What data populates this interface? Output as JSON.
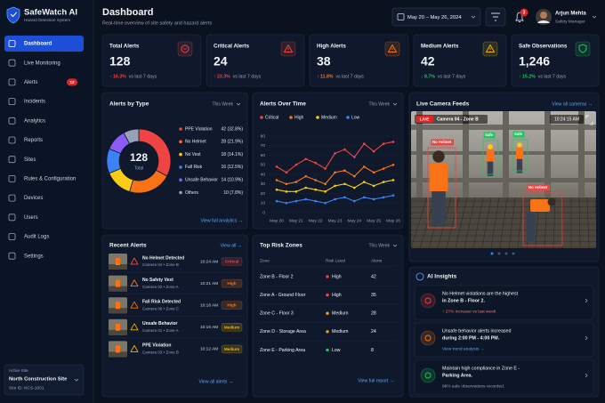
{
  "sidebar": {
    "app_name": "SafeWatch AI",
    "tagline": "Hazard Detection System",
    "nav": [
      {
        "label": "Dashboard",
        "active": true
      },
      {
        "label": "Live Monitoring"
      },
      {
        "label": "Alerts",
        "badge": 12
      },
      {
        "label": "Incidents"
      },
      {
        "label": "Analytics"
      },
      {
        "label": "Reports"
      },
      {
        "label": "Sites"
      },
      {
        "label": "Rules & Configuration"
      },
      {
        "label": "Devices"
      },
      {
        "label": "Users"
      },
      {
        "label": "Audit Logs"
      },
      {
        "label": "Settings"
      }
    ],
    "site": {
      "caption": "Active Site",
      "name": "North Construction Site",
      "id": "Site ID: NCS-1001"
    }
  },
  "header": {
    "title": "Dashboard",
    "subtitle": "Real-time overview of site safety and hazard alerts",
    "date_range": "May 20 – May 26, 2024",
    "notifications": 3,
    "user": {
      "name": "Arjun Mehta",
      "role": "Safety Manager"
    }
  },
  "kpis": [
    {
      "title": "Total Alerts",
      "value": 128,
      "change": "↑ 16.3%",
      "caption": "vs last 7 days",
      "color": "#ef4444",
      "trend_color": "#ef4444"
    },
    {
      "title": "Critical Alerts",
      "value": 24,
      "change": "↑ 23.3%",
      "caption": "vs last 7 days",
      "color": "#ef4444",
      "trend_color": "#ef4444"
    },
    {
      "title": "High Alerts",
      "value": 38,
      "change": "↑ 11.8%",
      "caption": "vs last 7 days",
      "color": "#f97316",
      "trend_color": "#f97316"
    },
    {
      "title": "Medium Alerts",
      "value": 42,
      "change": "↓ 8.7%",
      "caption": "vs last 7 days",
      "color": "#eab308",
      "trend_color": "#22c55e"
    },
    {
      "title": "Safe Observations",
      "value": "1,246",
      "change": "↑ 15.2%",
      "caption": "vs last 7 days",
      "color": "#22c55e",
      "trend_color": "#22c55e"
    }
  ],
  "chart_data": [
    {
      "type": "donut",
      "title": "Alerts by Type",
      "period": "This Week",
      "center_value": 128,
      "center_label": "Total",
      "categories": [
        "PPE Violation",
        "No Helmet",
        "No Vest",
        "Fall Risk",
        "Unsafe Behavior",
        "Others"
      ],
      "values": [
        42,
        28,
        18,
        16,
        14,
        10
      ],
      "value_labels": [
        "42 (32.8%)",
        "28 (21.9%)",
        "18 (14.1%)",
        "16 (12.5%)",
        "14 (10.9%)",
        "10 (7.8%)"
      ],
      "colors": [
        "#ef4444",
        "#f97316",
        "#facc15",
        "#3b82f6",
        "#8b5cf6",
        "#94a3b8"
      ],
      "link": "View full analytics →"
    },
    {
      "type": "line",
      "title": "Alerts Over Time",
      "period": "This Week",
      "categories": [
        "May 20",
        null,
        "May 21",
        null,
        "May 22",
        null,
        "May 23",
        null,
        "May 24",
        null,
        "May 25",
        null,
        "May 26"
      ],
      "series": [
        {
          "name": "Critical",
          "color": "#ef4444",
          "values": [
            48,
            42,
            50,
            56,
            52,
            46,
            62,
            66,
            58,
            72,
            64,
            72,
            74
          ]
        },
        {
          "name": "High",
          "color": "#f97316",
          "values": [
            34,
            30,
            32,
            38,
            34,
            30,
            42,
            44,
            38,
            48,
            42,
            46,
            50
          ]
        },
        {
          "name": "Medium",
          "color": "#facc15",
          "values": [
            24,
            22,
            22,
            26,
            24,
            22,
            28,
            30,
            26,
            32,
            28,
            32,
            34
          ]
        },
        {
          "name": "Low",
          "color": "#3b82f6",
          "values": [
            12,
            10,
            12,
            14,
            12,
            10,
            14,
            16,
            12,
            16,
            14,
            16,
            18
          ]
        }
      ],
      "ylim": [
        0,
        80
      ],
      "yticks": [
        0,
        10,
        20,
        30,
        40,
        50,
        60,
        70,
        80
      ],
      "grid": true
    }
  ],
  "camera": {
    "title": "Live Camera Feeds",
    "link": "View all cameras →",
    "live": "LIVE",
    "name": "Camera 04 - Zone B",
    "time": "10:24:15 AM",
    "detections": [
      {
        "label": "No Helmet",
        "color": "#ef4444"
      },
      {
        "label": "Safe",
        "color": "#22c55e"
      },
      {
        "label": "Safe",
        "color": "#22c55e"
      },
      {
        "label": "No Helmet",
        "color": "#ef4444"
      }
    ]
  },
  "recent_alerts": {
    "title": "Recent Alerts",
    "link": "View all →",
    "footer": "View all alerts →",
    "items": [
      {
        "title": "No Helmet Detected",
        "source": "Camera 04 • Zone B",
        "time": "10:24 AM",
        "severity": "Critical",
        "color": "#ef4444"
      },
      {
        "title": "No Safety Vest",
        "source": "Camera 02 • Zone A",
        "time": "10:21 AM",
        "severity": "High",
        "color": "#f97316"
      },
      {
        "title": "Fall Risk Detected",
        "source": "Camera 06 • Zone C",
        "time": "10:18 AM",
        "severity": "High",
        "color": "#f97316"
      },
      {
        "title": "Unsafe Behavior",
        "source": "Camera 01 • Zone A",
        "time": "10:15 AM",
        "severity": "Medium",
        "color": "#eab308"
      },
      {
        "title": "PPE Violation",
        "source": "Camera 03 • Zone B",
        "time": "10:12 AM",
        "severity": "Medium",
        "color": "#eab308"
      }
    ]
  },
  "risk_zones": {
    "title": "Top Risk Zones",
    "period": "This Week",
    "columns": [
      "Zone",
      "Risk Level",
      "Alerts"
    ],
    "footer": "View full report →",
    "rows": [
      {
        "zone": "Zone B - Floor 2",
        "risk": "High",
        "alerts": 42,
        "color": "#ef4444"
      },
      {
        "zone": "Zone A - Ground Floor",
        "risk": "High",
        "alerts": 35,
        "color": "#ef4444"
      },
      {
        "zone": "Zone C - Floor 3",
        "risk": "Medium",
        "alerts": 28,
        "color": "#f59e0b"
      },
      {
        "zone": "Zone D - Storage Area",
        "risk": "Medium",
        "alerts": 24,
        "color": "#f59e0b"
      },
      {
        "zone": "Zone E - Parking Area",
        "risk": "Low",
        "alerts": 8,
        "color": "#22c55e"
      }
    ]
  },
  "insights": {
    "title": "AI Insights",
    "items": [
      {
        "lines": [
          "No Helmet violations are the highest",
          "in Zone B - Floor 2."
        ],
        "detail": "↑ 27% increase vs last week",
        "color": "#ef4444",
        "detail_color": "#f87171"
      },
      {
        "lines": [
          "Unsafe behavior alerts increased",
          "during 2:00 PM - 4:00 PM."
        ],
        "detail": "View trend analysis →",
        "color": "#f97316",
        "detail_color": "#60a5fa"
      },
      {
        "lines": [
          "Maintain high compliance in Zone E -",
          "Parking Area."
        ],
        "detail": "98% safe observations recorded.",
        "color": "#22c55e",
        "detail_color": "#94a3b8"
      }
    ]
  }
}
